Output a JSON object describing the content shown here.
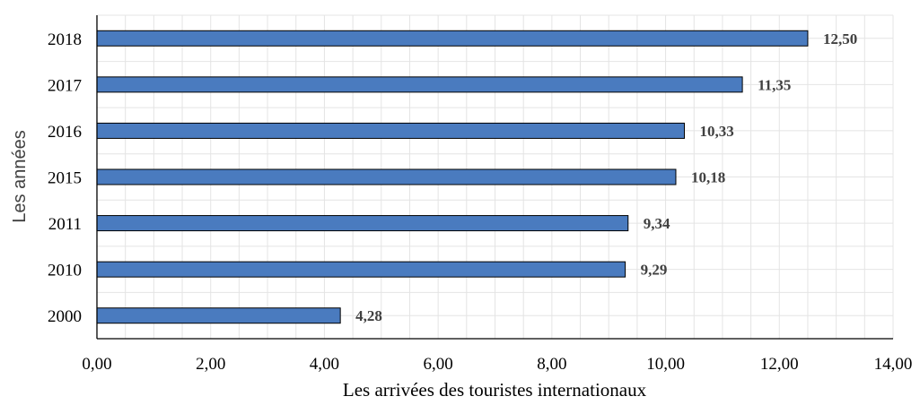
{
  "chart_data": {
    "type": "bar",
    "orientation": "horizontal",
    "categories": [
      "2018",
      "2017",
      "2016",
      "2015",
      "2011",
      "2010",
      "2000"
    ],
    "values": [
      12.5,
      11.35,
      10.33,
      10.18,
      9.34,
      9.29,
      4.28
    ],
    "value_labels": [
      "12,50",
      "11,35",
      "10,33",
      "10,18",
      "9,34",
      "9,29",
      "4,28"
    ],
    "xlabel": "Les arrivées des touristes internationaux",
    "ylabel": "Les années",
    "xlim": [
      0,
      14
    ],
    "x_ticks": [
      0,
      2,
      4,
      6,
      8,
      10,
      12,
      14
    ],
    "x_tick_labels": [
      "0,00",
      "2,00",
      "4,00",
      "6,00",
      "8,00",
      "10,00",
      "12,00",
      "14,00"
    ],
    "minor_grid_step": 0.5,
    "grid": true,
    "colors": {
      "bar_fill": "#4a7bbf",
      "bar_stroke": "#000000",
      "grid": "#e4e4e4",
      "label": "#404040"
    }
  }
}
